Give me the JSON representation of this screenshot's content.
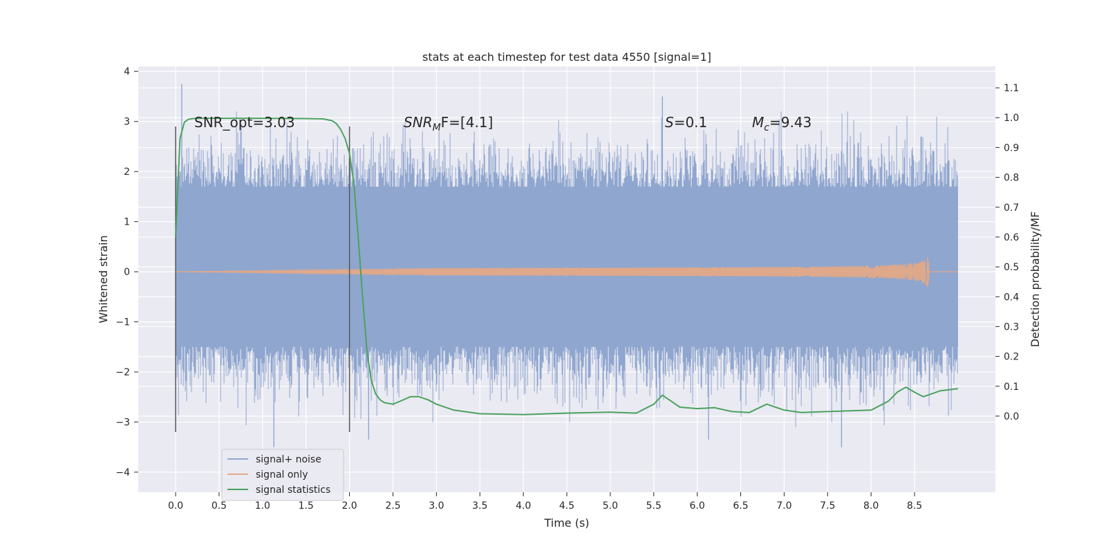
{
  "chart_data": {
    "type": "line",
    "title": "stats at each timestep for test data 4550 [signal=1]",
    "xlabel": "Time (s)",
    "ylabel": "Whitened strain",
    "y2label": "Detection probability/MF",
    "xlim": [
      -0.43,
      9.43
    ],
    "ylim": [
      -4.4,
      4.1
    ],
    "y2lim": [
      -0.255,
      1.172
    ],
    "x_ticks": [
      "0.0",
      "0.5",
      "1.0",
      "1.5",
      "2.0",
      "2.5",
      "3.0",
      "3.5",
      "4.0",
      "4.5",
      "5.0",
      "5.5",
      "6.0",
      "6.5",
      "7.0",
      "7.5",
      "8.0",
      "8.5"
    ],
    "y_ticks": [
      4,
      3,
      2,
      1,
      0,
      -1,
      -2,
      -3,
      -4
    ],
    "y2_ticks": [
      "1.1",
      "1.0",
      "0.9",
      "0.8",
      "0.7",
      "0.6",
      "0.5",
      "0.4",
      "0.3",
      "0.2",
      "0.1",
      "0.0"
    ],
    "grid": true,
    "legend_position": "lower-left",
    "legend": [
      "signal+ noise",
      "signal only",
      "signal statistics"
    ],
    "colors": {
      "signal_noise": "#8fa6cf",
      "signal_only": "#e3a887",
      "signal_statistics": "#4aa25e",
      "markers": "#555555",
      "background": "#eaeaf2"
    },
    "annotations": {
      "snr_opt": "SNR_opt=3.03",
      "snr_mf_base": "SNR",
      "snr_mf_sub": "M",
      "snr_mf_rest": "F=[4.1]",
      "s_var": "S",
      "s_val": "=0.1",
      "mc_var": "M",
      "mc_sub": "c",
      "mc_val": "=9.43"
    },
    "marker_lines": {
      "x": [
        0.0,
        2.0
      ],
      "y_range": [
        -3.2,
        2.9
      ]
    },
    "series": [
      {
        "name": "signal+ noise",
        "axis": "left",
        "style": "dense noise band",
        "x_range": [
          0.0,
          9.0
        ],
        "core_band": [
          -1.5,
          1.7
        ],
        "extremes": [
          {
            "x": 0.07,
            "y": 3.75
          },
          {
            "x": 5.6,
            "y": 3.5
          },
          {
            "x": 1.13,
            "y": -3.5
          },
          {
            "x": 7.66,
            "y": -3.5
          },
          {
            "x": 2.22,
            "y": -3.35
          },
          {
            "x": 6.13,
            "y": -3.35
          }
        ]
      },
      {
        "name": "signal only",
        "axis": "left",
        "style": "chirp",
        "x_range": [
          0.0,
          8.67
        ],
        "peak_amplitude": 0.45
      },
      {
        "name": "signal statistics",
        "axis": "right",
        "x": [
          0.0,
          0.05,
          0.1,
          0.15,
          0.2,
          0.3,
          0.5,
          1.0,
          1.5,
          1.7,
          1.8,
          1.85,
          1.9,
          1.95,
          2.0,
          2.05,
          2.1,
          2.15,
          2.2,
          2.25,
          2.3,
          2.35,
          2.4,
          2.5,
          2.6,
          2.7,
          2.8,
          2.9,
          3.0,
          3.2,
          3.5,
          4.0,
          4.5,
          5.0,
          5.3,
          5.5,
          5.6,
          5.8,
          6.0,
          6.2,
          6.4,
          6.6,
          6.8,
          7.0,
          7.2,
          7.5,
          8.0,
          8.2,
          8.3,
          8.4,
          8.5,
          8.6,
          8.8,
          9.0
        ],
        "y": [
          0.6,
          0.93,
          0.985,
          0.995,
          0.997,
          0.998,
          0.998,
          0.998,
          0.997,
          0.996,
          0.99,
          0.98,
          0.96,
          0.93,
          0.88,
          0.78,
          0.6,
          0.4,
          0.22,
          0.12,
          0.075,
          0.055,
          0.045,
          0.04,
          0.052,
          0.065,
          0.065,
          0.055,
          0.04,
          0.02,
          0.008,
          0.005,
          0.01,
          0.013,
          0.01,
          0.04,
          0.07,
          0.03,
          0.025,
          0.028,
          0.015,
          0.012,
          0.04,
          0.02,
          0.012,
          0.015,
          0.02,
          0.05,
          0.08,
          0.097,
          0.08,
          0.065,
          0.085,
          0.092
        ]
      }
    ]
  }
}
